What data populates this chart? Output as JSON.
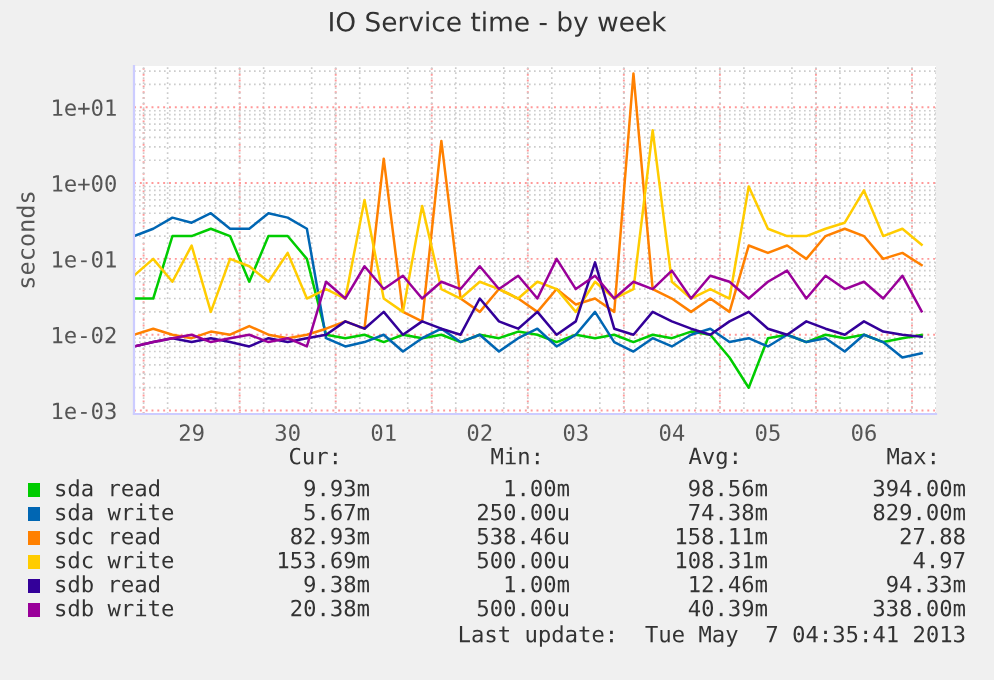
{
  "chart_data": {
    "type": "line",
    "title": "IO Service time - by week",
    "ylabel": "seconds",
    "x": [
      "2013-04-28T21:36",
      "2013-04-29T02:24",
      "2013-04-29T07:12",
      "2013-04-29T12:00",
      "2013-04-29T16:48",
      "2013-04-29T21:36",
      "2013-04-30T02:24",
      "2013-04-30T07:12",
      "2013-04-30T12:00",
      "2013-04-30T16:48",
      "2013-04-30T21:36",
      "2013-05-01T02:24",
      "2013-05-01T07:12",
      "2013-05-01T12:00",
      "2013-05-01T16:48",
      "2013-05-01T21:36",
      "2013-05-02T02:24",
      "2013-05-02T07:12",
      "2013-05-02T12:00",
      "2013-05-02T16:48",
      "2013-05-02T21:36",
      "2013-05-03T02:24",
      "2013-05-03T07:12",
      "2013-05-03T12:00",
      "2013-05-03T16:48",
      "2013-05-03T21:36",
      "2013-05-04T02:24",
      "2013-05-04T07:12",
      "2013-05-04T12:00",
      "2013-05-04T16:48",
      "2013-05-04T21:36",
      "2013-05-05T02:24",
      "2013-05-05T07:12",
      "2013-05-05T12:00",
      "2013-05-05T16:48",
      "2013-05-05T21:36",
      "2013-05-06T02:24",
      "2013-05-06T07:12",
      "2013-05-06T12:00",
      "2013-05-06T16:48",
      "2013-05-06T21:36",
      "2013-05-07T02:24"
    ],
    "series": [
      {
        "name": "sda read",
        "color": "#00cc00",
        "values": [
          0.03,
          0.03,
          0.2,
          0.2,
          0.25,
          0.2,
          0.05,
          0.2,
          0.2,
          0.1,
          0.01,
          0.009,
          0.01,
          0.008,
          0.01,
          0.009,
          0.01,
          0.008,
          0.01,
          0.009,
          0.011,
          0.01,
          0.008,
          0.01,
          0.009,
          0.01,
          0.008,
          0.01,
          0.009,
          0.011,
          0.01,
          0.005,
          0.002,
          0.009,
          0.01,
          0.008,
          0.01,
          0.009,
          0.01,
          0.008,
          0.009,
          0.0099
        ]
      },
      {
        "name": "sda write",
        "color": "#0066b3",
        "values": [
          0.2,
          0.25,
          0.35,
          0.3,
          0.4,
          0.25,
          0.25,
          0.4,
          0.35,
          0.25,
          0.009,
          0.007,
          0.008,
          0.01,
          0.006,
          0.009,
          0.012,
          0.008,
          0.01,
          0.006,
          0.009,
          0.012,
          0.007,
          0.01,
          0.02,
          0.008,
          0.006,
          0.009,
          0.007,
          0.01,
          0.012,
          0.008,
          0.009,
          0.007,
          0.01,
          0.008,
          0.009,
          0.006,
          0.01,
          0.008,
          0.005,
          0.0057
        ]
      },
      {
        "name": "sdc read",
        "color": "#ff8000",
        "values": [
          0.01,
          0.012,
          0.01,
          0.009,
          0.011,
          0.01,
          0.013,
          0.01,
          0.009,
          0.01,
          0.012,
          0.015,
          0.012,
          2.1,
          0.02,
          0.015,
          3.6,
          0.03,
          0.02,
          0.04,
          0.03,
          0.02,
          0.04,
          0.025,
          0.03,
          0.02,
          27.88,
          0.04,
          0.03,
          0.02,
          0.03,
          0.02,
          0.15,
          0.12,
          0.15,
          0.1,
          0.2,
          0.25,
          0.2,
          0.1,
          0.12,
          0.083
        ]
      },
      {
        "name": "sdc write",
        "color": "#ffcc00",
        "values": [
          0.06,
          0.1,
          0.05,
          0.15,
          0.02,
          0.1,
          0.08,
          0.05,
          0.12,
          0.03,
          0.04,
          0.03,
          0.6,
          0.03,
          0.02,
          0.5,
          0.04,
          0.03,
          0.05,
          0.04,
          0.03,
          0.05,
          0.04,
          0.02,
          0.05,
          0.03,
          0.04,
          4.97,
          0.05,
          0.03,
          0.04,
          0.03,
          0.9,
          0.25,
          0.2,
          0.2,
          0.25,
          0.3,
          0.8,
          0.2,
          0.25,
          0.154
        ]
      },
      {
        "name": "sdb read",
        "color": "#330099",
        "values": [
          0.007,
          0.008,
          0.009,
          0.008,
          0.009,
          0.008,
          0.007,
          0.009,
          0.008,
          0.009,
          0.01,
          0.015,
          0.012,
          0.02,
          0.01,
          0.015,
          0.012,
          0.01,
          0.03,
          0.015,
          0.012,
          0.02,
          0.01,
          0.015,
          0.09,
          0.012,
          0.01,
          0.02,
          0.015,
          0.012,
          0.01,
          0.015,
          0.02,
          0.012,
          0.01,
          0.015,
          0.012,
          0.01,
          0.015,
          0.011,
          0.01,
          0.0094
        ]
      },
      {
        "name": "sdb write",
        "color": "#990099",
        "values": [
          0.007,
          0.008,
          0.009,
          0.01,
          0.008,
          0.009,
          0.01,
          0.008,
          0.009,
          0.007,
          0.05,
          0.03,
          0.08,
          0.04,
          0.06,
          0.03,
          0.05,
          0.04,
          0.08,
          0.04,
          0.06,
          0.03,
          0.1,
          0.04,
          0.06,
          0.03,
          0.05,
          0.04,
          0.07,
          0.03,
          0.06,
          0.05,
          0.03,
          0.05,
          0.07,
          0.03,
          0.06,
          0.04,
          0.05,
          0.03,
          0.06,
          0.0204
        ]
      }
    ],
    "log": true,
    "xlim": [
      "2013-04-28T21:36",
      "2013-05-07T06:00"
    ],
    "ylim": [
      0.0009,
      35
    ],
    "xticks": [
      {
        "value": "2013-04-29T12:00",
        "label": "29"
      },
      {
        "value": "2013-04-30T12:00",
        "label": "30"
      },
      {
        "value": "2013-05-01T12:00",
        "label": "01"
      },
      {
        "value": "2013-05-02T12:00",
        "label": "02"
      },
      {
        "value": "2013-05-03T12:00",
        "label": "03"
      },
      {
        "value": "2013-05-04T12:00",
        "label": "04"
      },
      {
        "value": "2013-05-05T12:00",
        "label": "05"
      },
      {
        "value": "2013-05-06T12:00",
        "label": "06"
      }
    ],
    "yticks": [
      {
        "value": 0.001,
        "label": "1e-03"
      },
      {
        "value": 0.01,
        "label": "1e-02"
      },
      {
        "value": 0.1,
        "label": "1e-01"
      },
      {
        "value": 1,
        "label": "1e+00"
      },
      {
        "value": 10,
        "label": "1e+01"
      }
    ],
    "grid": true,
    "legend": "bottom",
    "marker": "none",
    "line_style": "solid",
    "annotations": [
      "Cur:",
      "Min:",
      "Avg:",
      "Max:",
      "9.93m",
      "1.00m",
      "98.56m",
      "394.00m",
      "5.67m",
      "250.00u",
      "74.38m",
      "829.00m",
      "82.93m",
      "538.46u",
      "158.11m",
      "27.88",
      "153.69m",
      "500.00u",
      "108.31m",
      "4.97",
      "9.38m",
      "1.00m",
      "12.46m",
      "94.33m",
      "20.38m",
      "500.00u",
      "40.39m",
      "338.00m",
      "Last update:  Tue May  7 04:35:41 2013"
    ]
  }
}
